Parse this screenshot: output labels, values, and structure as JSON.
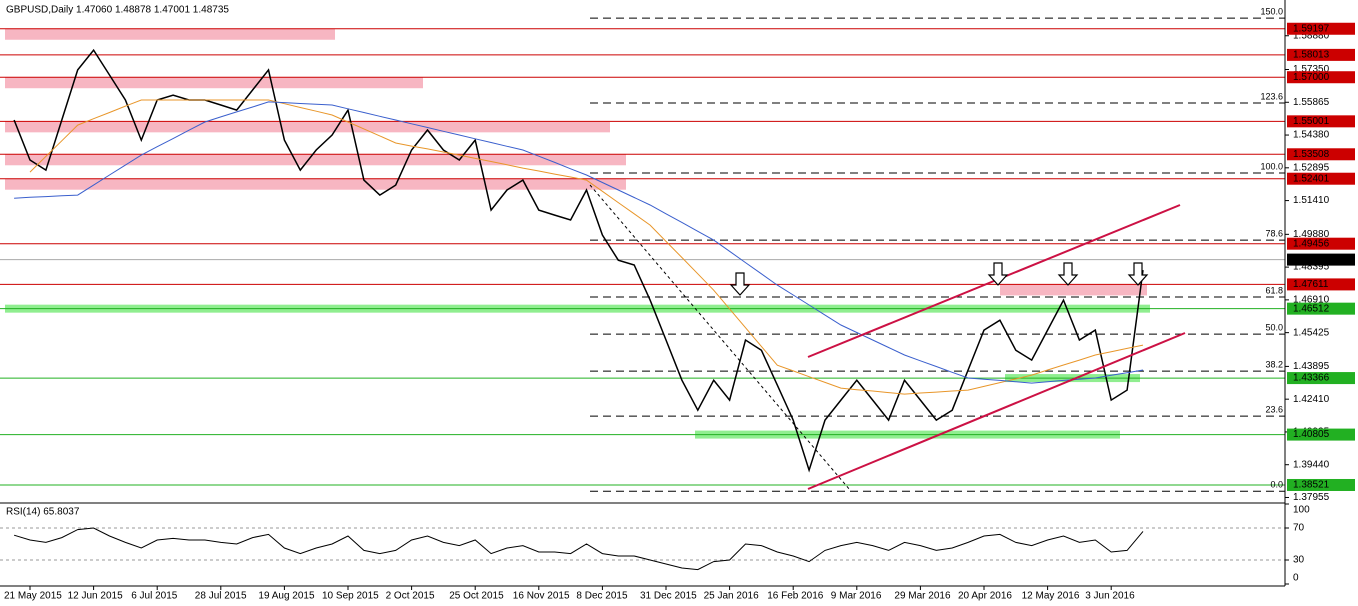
{
  "chart_data": {
    "type": "line",
    "title": "GBPUSD,Daily  1.47060 1.48878 1.47001 1.48735",
    "categories": [
      null,
      "21 May 2015",
      null,
      null,
      null,
      "12 Jun 2015",
      null,
      null,
      null,
      "6 Jul 2015",
      null,
      null,
      null,
      "28 Jul 2015",
      null,
      null,
      null,
      "19 Aug 2015",
      null,
      null,
      null,
      "10 Sep 2015",
      null,
      null,
      null,
      "2 Oct 2015",
      null,
      null,
      null,
      "25 Oct 2015",
      null,
      null,
      null,
      "16 Nov 2015",
      null,
      null,
      null,
      "8 Dec 2015",
      null,
      null,
      null,
      "31 Dec 2015",
      null,
      null,
      null,
      "25 Jan 2016",
      null,
      null,
      null,
      "16 Feb 2016",
      null,
      null,
      null,
      "9 Mar 2016",
      null,
      null,
      null,
      "29 Mar 2016",
      null,
      null,
      null,
      "20 Apr 2016",
      null,
      null,
      null,
      "12 May 2016",
      null,
      null,
      null,
      "3 Jun 2016",
      null,
      null
    ],
    "series": [
      {
        "color": "#000000",
        "values": [
          1.5506,
          1.5325,
          1.5279,
          1.5506,
          1.5733,
          1.5823,
          1.571,
          1.5597,
          1.5415,
          1.5597,
          1.5619,
          1.5597,
          1.5597,
          1.5574,
          1.5551,
          1.5642,
          1.5733,
          1.5415,
          1.5279,
          1.537,
          1.5438,
          1.5551,
          1.5234,
          1.5166,
          1.5211,
          1.537,
          1.5461,
          1.537,
          1.5325,
          1.5415,
          1.5098,
          1.5189,
          1.5234,
          1.5098,
          1.5075,
          1.5053,
          1.5189,
          1.4985,
          1.4871,
          1.4849,
          1.469,
          1.4509,
          1.4327,
          1.4191,
          1.4327,
          1.4237,
          1.4509,
          1.4463,
          1.4305,
          1.4146,
          1.3919,
          1.4146,
          1.4237,
          1.4327,
          1.4237,
          1.4146,
          1.4327,
          1.4237,
          1.4146,
          1.4191,
          1.4373,
          1.4554,
          1.4599,
          1.4463,
          1.4418,
          1.4554,
          1.469,
          1.4509,
          1.4554,
          1.4237,
          1.4282,
          1.4826
        ]
      },
      {
        "color": "#e8962a",
        "values": [
          null,
          1.527,
          1.5341,
          1.5412,
          1.5483,
          1.5512,
          1.554,
          1.5569,
          1.5597,
          1.5597,
          1.5597,
          1.5597,
          1.5597,
          1.5597,
          1.5597,
          1.5597,
          1.5597,
          1.558,
          1.5563,
          1.5546,
          1.5529,
          1.5497,
          1.5466,
          1.5434,
          1.5402,
          1.5388,
          1.5375,
          1.5361,
          1.5347,
          1.5332,
          1.5318,
          1.5303,
          1.5288,
          1.5275,
          1.5261,
          1.5248,
          1.5234,
          1.5183,
          1.5132,
          1.5081,
          1.503,
          1.4956,
          1.4883,
          1.4809,
          1.4735,
          1.465,
          1.4565,
          1.448,
          1.4395,
          1.4369,
          1.4343,
          1.4317,
          1.4291,
          1.4284,
          1.4278,
          1.4271,
          1.4264,
          1.4269,
          1.4273,
          1.4278,
          1.4282,
          1.4299,
          1.4316,
          1.4333,
          1.435,
          1.4373,
          1.4396,
          1.4418,
          1.4441,
          1.4456,
          1.4471,
          1.4486
        ]
      },
      {
        "color": "#3a5fcd",
        "values": [
          1.5152,
          1.5156,
          1.5159,
          1.5163,
          1.5166,
          1.5211,
          1.5257,
          1.5302,
          1.5347,
          1.5385,
          1.5422,
          1.546,
          1.5497,
          1.552,
          1.5543,
          1.5565,
          1.5588,
          1.5585,
          1.5581,
          1.5578,
          1.5574,
          1.5557,
          1.554,
          1.5523,
          1.5506,
          1.5489,
          1.5472,
          1.5455,
          1.5438,
          1.5421,
          1.5404,
          1.5387,
          1.537,
          1.5342,
          1.5314,
          1.5285,
          1.5257,
          1.5223,
          1.5189,
          1.5155,
          1.5121,
          1.5081,
          1.5042,
          1.5002,
          1.4962,
          1.4911,
          1.486,
          1.4809,
          1.4758,
          1.4713,
          1.4668,
          1.4622,
          1.4577,
          1.4543,
          1.4509,
          1.4475,
          1.4441,
          1.4415,
          1.4389,
          1.4363,
          1.4337,
          1.4331,
          1.4326,
          1.432,
          1.4314,
          1.432,
          1.4326,
          1.4331,
          1.4337,
          1.4349,
          1.4361,
          1.4373
        ]
      }
    ],
    "ylim": [
      1.3775,
      1.605
    ],
    "yticks": [
      {
        "value": 1.5888,
        "label": "1.58880"
      },
      {
        "value": 1.5735,
        "label": "1.57350"
      },
      1.55865,
      {
        "value": 1.5438,
        "label": "1.54380"
      },
      1.52895,
      {
        "value": 1.5141,
        "label": "1.51410"
      },
      {
        "value": 1.4988,
        "label": "1.49880"
      },
      1.48395,
      {
        "value": 1.4691,
        "label": "1.46910"
      },
      1.45425,
      1.43895,
      {
        "value": 1.4241,
        "label": "1.42410"
      },
      1.40925,
      {
        "value": 1.3944,
        "label": "1.39440"
      },
      1.37955
    ],
    "levels": [
      {
        "value": 1.59197,
        "color": "#cc0000"
      },
      {
        "value": 1.58013,
        "color": "#cc0000"
      },
      {
        "value": 1.57,
        "label": "1.57000",
        "color": "#cc0000"
      },
      {
        "value": 1.55001,
        "color": "#cc0000"
      },
      {
        "value": 1.53508,
        "color": "#cc0000"
      },
      {
        "value": 1.52401,
        "color": "#cc0000"
      },
      {
        "value": 1.49456,
        "color": "#cc0000"
      },
      {
        "value": 1.47611,
        "color": "#cc0000"
      },
      {
        "value": 1.46512,
        "color": "#22b022"
      },
      {
        "value": 1.43366,
        "color": "#22b022"
      },
      {
        "value": 1.40805,
        "color": "#22b022"
      },
      {
        "value": 1.38521,
        "color": "#22b022"
      }
    ],
    "fib_levels": [
      {
        "value": 1.5968,
        "label": "150.0"
      },
      {
        "value": 1.5583,
        "label": "123.6"
      },
      {
        "value": 1.5266,
        "label": "100.0"
      },
      {
        "value": 1.4962,
        "label": "78.6"
      },
      {
        "value": 1.4704,
        "label": "61.8"
      },
      {
        "value": 1.4536,
        "label": "50.0"
      },
      {
        "value": 1.4368,
        "label": "38.2"
      },
      {
        "value": 1.4164,
        "label": "23.6"
      },
      {
        "value": 1.3824,
        "label": "0.0"
      }
    ],
    "last_price": 1.48735,
    "rsi": {
      "title": "RSI(14) 65.8037",
      "color": "#000000",
      "values": [
        61,
        55,
        52,
        58,
        68,
        70,
        60,
        52,
        45,
        55,
        57,
        55,
        55,
        52,
        50,
        58,
        62,
        45,
        38,
        45,
        50,
        60,
        42,
        38,
        42,
        55,
        60,
        52,
        48,
        55,
        38,
        45,
        48,
        40,
        40,
        38,
        50,
        38,
        35,
        35,
        30,
        25,
        20,
        18,
        28,
        30,
        50,
        48,
        40,
        35,
        28,
        42,
        48,
        52,
        48,
        42,
        52,
        48,
        42,
        45,
        52,
        60,
        62,
        52,
        48,
        55,
        60,
        52,
        55,
        40,
        42,
        65.8037
      ],
      "ylim": [
        0,
        100
      ],
      "yticks": [
        100,
        70,
        30,
        0
      ],
      "dashed": [
        70,
        30
      ]
    }
  }
}
